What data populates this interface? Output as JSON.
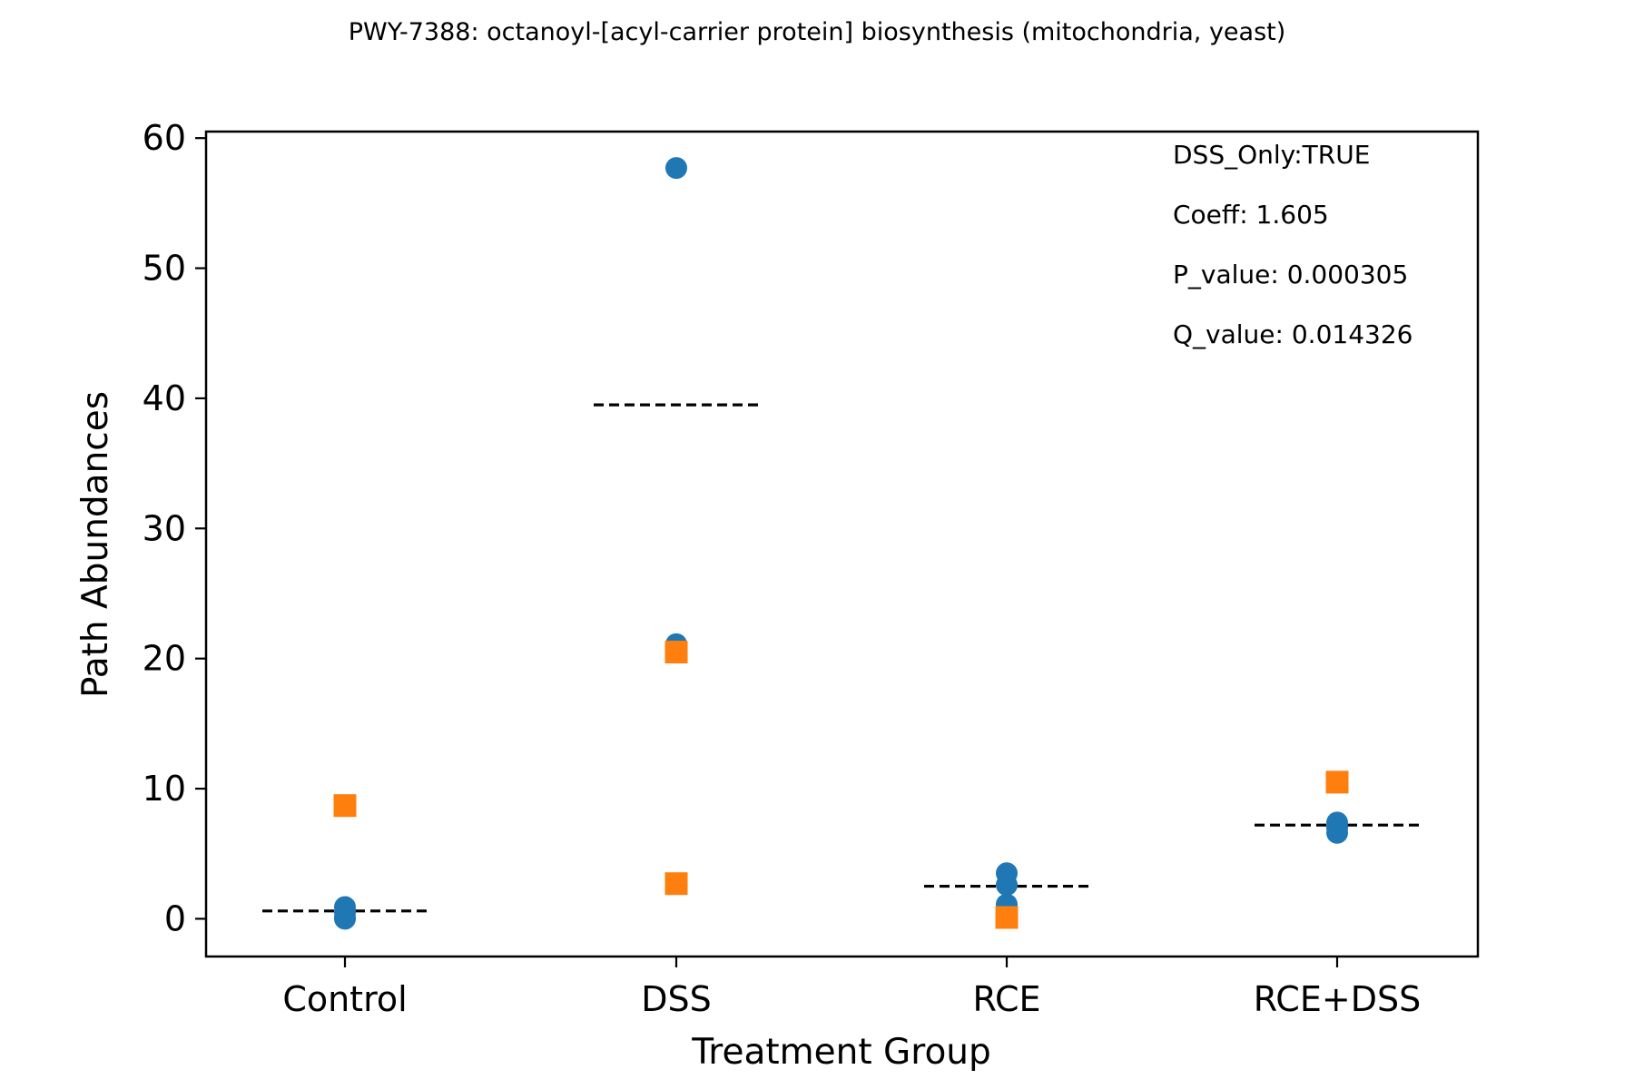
{
  "chart_data": {
    "type": "scatter",
    "title": "PWY-7388: octanoyl-[acyl-carrier protein] biosynthesis (mitochondria, yeast)",
    "xlabel": "Treatment Group",
    "ylabel": "Path Abundances",
    "categories": [
      "Control",
      "DSS",
      "RCE",
      "RCE+DSS"
    ],
    "ylim": [
      -2.9,
      60.5
    ],
    "yticks": [
      0,
      10,
      20,
      30,
      40,
      50,
      60
    ],
    "grid": false,
    "colors": {
      "circle": "#1f77b4",
      "square": "#ff7f0e",
      "mean": "#000000"
    },
    "series": [
      {
        "marker": "circle",
        "points": [
          {
            "category": "Control",
            "y": 0.9
          },
          {
            "category": "Control",
            "y": 0.5
          },
          {
            "category": "Control",
            "y": 0.1
          },
          {
            "category": "Control",
            "y": 0.0
          },
          {
            "category": "DSS",
            "y": 57.7
          },
          {
            "category": "DSS",
            "y": 21.1
          },
          {
            "category": "RCE",
            "y": 3.5
          },
          {
            "category": "RCE",
            "y": 2.6
          },
          {
            "category": "RCE",
            "y": 1.1
          },
          {
            "category": "RCE+DSS",
            "y": 7.4
          },
          {
            "category": "RCE+DSS",
            "y": 7.0
          },
          {
            "category": "RCE+DSS",
            "y": 6.6
          }
        ]
      },
      {
        "marker": "square",
        "points": [
          {
            "category": "Control",
            "y": 8.7
          },
          {
            "category": "DSS",
            "y": 20.5
          },
          {
            "category": "DSS",
            "y": 2.7
          },
          {
            "category": "RCE",
            "y": 0.1
          },
          {
            "category": "RCE+DSS",
            "y": 10.5
          }
        ]
      }
    ],
    "means": [
      {
        "category": "Control",
        "y": 0.6
      },
      {
        "category": "DSS",
        "y": 39.5
      },
      {
        "category": "RCE",
        "y": 2.5
      },
      {
        "category": "RCE+DSS",
        "y": 7.2
      }
    ],
    "annotations": [
      "DSS_Only:TRUE",
      "Coeff: 1.605",
      "P_value: 0.000305",
      "Q_value: 0.014326"
    ]
  }
}
